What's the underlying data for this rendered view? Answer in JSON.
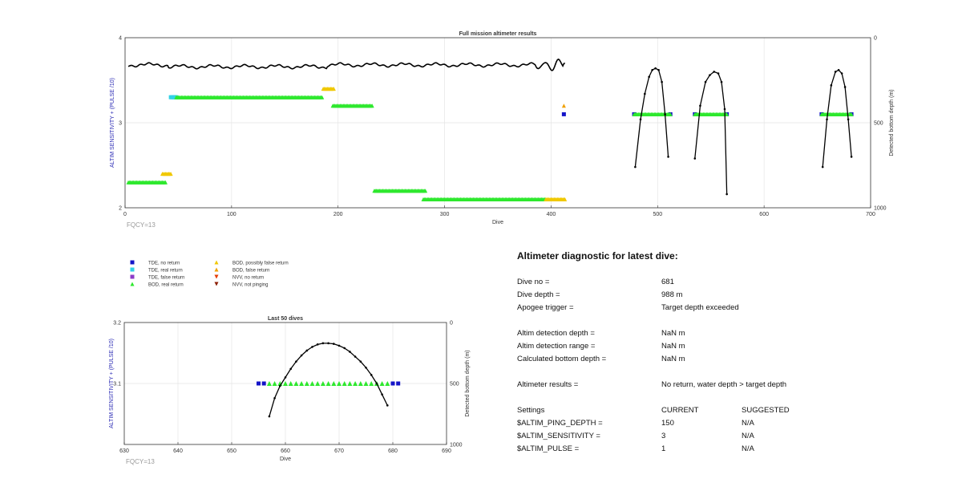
{
  "chart_data": [
    {
      "type": "scatter",
      "title": "Full mission altimeter results",
      "xlabel": "Dive",
      "ylabel": "ALTIM SENSITIVITY + (PULSE /10)",
      "y2label": "Detected bottom depth (m)",
      "xlim": [
        0,
        700
      ],
      "ylim": [
        2,
        4
      ],
      "y2lim": [
        1000,
        0
      ],
      "xticks": [
        0,
        100,
        200,
        300,
        400,
        500,
        600,
        700
      ],
      "yticks": [
        2,
        3,
        4
      ],
      "y2ticks": [
        0,
        500,
        1000
      ],
      "grid": true,
      "note": "FQCY=13",
      "series": [
        {
          "name": "TDE, no return",
          "color": "#1414c8",
          "shape": "square",
          "y": 3.1,
          "x": [
            412,
            478,
            512,
            535,
            565,
            654,
            682
          ]
        },
        {
          "name": "TDE, real return",
          "color": "#32d2e6",
          "shape": "square",
          "segments": [
            {
              "y": 3.3,
              "x0": 43,
              "x1": 48
            }
          ]
        },
        {
          "name": "BOD, real return",
          "color": "#2ee82e",
          "shape": "triangle",
          "segments": [
            {
              "y": 2.3,
              "x0": 3,
              "x1": 38
            },
            {
              "y": 3.3,
              "x0": 48,
              "x1": 185
            },
            {
              "y": 3.2,
              "x0": 195,
              "x1": 232
            },
            {
              "y": 2.2,
              "x0": 234,
              "x1": 282
            },
            {
              "y": 2.1,
              "x0": 280,
              "x1": 395
            },
            {
              "y": 3.1,
              "x0": 478,
              "x1": 512
            },
            {
              "y": 3.1,
              "x0": 535,
              "x1": 565
            },
            {
              "y": 3.1,
              "x0": 654,
              "x1": 682
            }
          ]
        },
        {
          "name": "BOD, possibly false return",
          "color": "#f0c800",
          "shape": "triangle",
          "segments": [
            {
              "y": 2.4,
              "x0": 35,
              "x1": 43
            },
            {
              "y": 3.4,
              "x0": 186,
              "x1": 196
            },
            {
              "y": 2.1,
              "x0": 395,
              "x1": 413
            }
          ]
        },
        {
          "name": "BOD, false return",
          "color": "#f0a000",
          "shape": "triangle",
          "x": [
            412
          ],
          "y": 3.2
        }
      ],
      "bottom_depth_series": {
        "name": "Detected bottom depth",
        "y2_range": {
          "flat_segment_dives": [
            3,
            413
          ],
          "flat_depth_approx": 160
        },
        "arches": [
          {
            "x": [
              479,
              484,
              488,
              492,
              495,
              498,
              501,
              504,
              507,
              510
            ],
            "depth": [
              760,
              480,
              330,
              230,
              190,
              180,
              190,
              260,
              450,
              700
            ]
          },
          {
            "x": [
              535,
              540,
              545,
              549,
              553,
              557,
              560,
              563,
              565
            ],
            "depth": [
              710,
              400,
              260,
              220,
              200,
              210,
              260,
              420,
              920
            ]
          },
          {
            "x": [
              655,
              659,
              663,
              667,
              670,
              673,
              676,
              679,
              682
            ],
            "depth": [
              760,
              480,
              280,
              200,
              190,
              210,
              290,
              480,
              700
            ]
          }
        ]
      }
    },
    {
      "type": "scatter",
      "title": "Last 50 dives",
      "xlabel": "Dive",
      "ylabel": "ALTIM SENSITIVITY + (PULSE /10)",
      "y2label": "Detected bottom depth (m)",
      "xlim": [
        630,
        690
      ],
      "ylim": [
        3,
        3.2
      ],
      "y2lim": [
        1000,
        0
      ],
      "xticks": [
        630,
        640,
        650,
        660,
        670,
        680,
        690
      ],
      "yticks": [
        3.1,
        3.2
      ],
      "y2ticks": [
        0,
        500,
        1000
      ],
      "grid": true,
      "note": "FQCY=13",
      "tde_no_return_x": [
        655,
        656,
        680,
        681
      ],
      "bod_real_return_x": [
        657,
        658,
        659,
        660,
        661,
        662,
        663,
        664,
        665,
        666,
        667,
        668,
        669,
        670,
        671,
        672,
        673,
        674,
        675,
        676,
        677,
        678,
        679
      ],
      "marker_y": 3.1,
      "bottom_depth": {
        "x": [
          657,
          658,
          659,
          660,
          661,
          662,
          663,
          664,
          665,
          666,
          667,
          668,
          669,
          670,
          671,
          672,
          673,
          674,
          675,
          676,
          677,
          678,
          679
        ],
        "depth": [
          770,
          620,
          520,
          450,
          380,
          320,
          270,
          230,
          200,
          180,
          170,
          170,
          175,
          190,
          210,
          240,
          280,
          320,
          370,
          430,
          500,
          590,
          680
        ]
      }
    }
  ],
  "legend": {
    "items": [
      {
        "label": "TDE, no return",
        "color": "#1414c8",
        "shape": "square"
      },
      {
        "label": "TDE, real return",
        "color": "#32d2e6",
        "shape": "square"
      },
      {
        "label": "TDE, false return",
        "color": "#8c3cc8",
        "shape": "square"
      },
      {
        "label": "BOD, real return",
        "color": "#2ee82e",
        "shape": "triangle"
      },
      {
        "label": "BOD, possibly false return",
        "color": "#f0c800",
        "shape": "triangle"
      },
      {
        "label": "BOD, false return",
        "color": "#f0a000",
        "shape": "triangle"
      },
      {
        "label": "NVV, no return",
        "color": "#e63c00",
        "shape": "triangle-down"
      },
      {
        "label": "NVV, not pinging",
        "color": "#8c1e00",
        "shape": "triangle-down"
      }
    ]
  },
  "diagnostic": {
    "title": "Altimeter diagnostic for latest dive:",
    "dive_no_label": "Dive no =",
    "dive_no": "681",
    "dive_depth_label": "Dive depth =",
    "dive_depth": "988 m",
    "apogee_label": "Apogee trigger =",
    "apogee": "Target depth exceeded",
    "altim_depth_label": "Altim detection depth =",
    "altim_depth": "NaN m",
    "altim_range_label": "Altim detection range =",
    "altim_range": "NaN m",
    "calc_bottom_label": "Calculated bottom depth =",
    "calc_bottom": "NaN m",
    "results_label": "Altimeter results =",
    "results": "No return, water depth > target depth",
    "settings_label": "Settings",
    "current_label": "CURRENT",
    "suggested_label": "SUGGESTED",
    "settings": [
      {
        "name": "$ALTIM_PING_DEPTH =",
        "current": "150",
        "suggested": "N/A"
      },
      {
        "name": "$ALTIM_SENSITIVITY =",
        "current": "3",
        "suggested": "N/A"
      },
      {
        "name": "$ALTIM_PULSE =",
        "current": "1",
        "suggested": "N/A"
      }
    ]
  }
}
